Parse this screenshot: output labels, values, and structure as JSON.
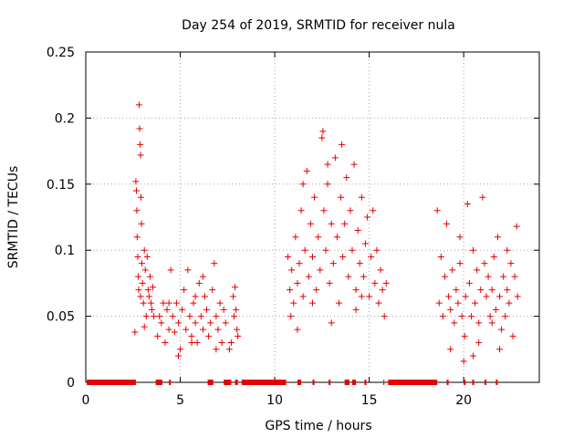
{
  "chart_data": {
    "type": "scatter",
    "title": "Day 254 of 2019, SRMTID for receiver nula",
    "xlabel": "GPS time / hours",
    "ylabel": "SRMTID / TECUs",
    "xlim": [
      0,
      24
    ],
    "ylim": [
      0,
      0.25
    ],
    "xticks": [
      0,
      5,
      10,
      15,
      20
    ],
    "yticks": [
      0,
      0.05,
      0.1,
      0.15,
      0.2,
      0.25
    ],
    "ytick_labels": [
      "0",
      "0.05",
      "0.1",
      "0.15",
      "0.2",
      "0.25"
    ],
    "grid": true,
    "marker": "+",
    "series": [
      {
        "name": "SRMTID",
        "color": "#e60000",
        "points": [
          [
            2.6,
            0.038
          ],
          [
            2.65,
            0.152
          ],
          [
            2.68,
            0.145
          ],
          [
            2.7,
            0.13
          ],
          [
            2.72,
            0.11
          ],
          [
            2.75,
            0.095
          ],
          [
            2.78,
            0.08
          ],
          [
            2.8,
            0.07
          ],
          [
            2.82,
            0.21
          ],
          [
            2.85,
            0.192
          ],
          [
            2.88,
            0.18
          ],
          [
            2.9,
            0.172
          ],
          [
            2.92,
            0.14
          ],
          [
            2.95,
            0.12
          ],
          [
            2.97,
            0.09
          ],
          [
            3.0,
            0.075
          ],
          [
            3.05,
            0.06
          ],
          [
            3.1,
            0.1
          ],
          [
            3.15,
            0.085
          ],
          [
            3.2,
            0.05
          ],
          [
            3.25,
            0.095
          ],
          [
            3.3,
            0.07
          ],
          [
            3.35,
            0.065
          ],
          [
            3.4,
            0.08
          ],
          [
            3.45,
            0.06
          ],
          [
            3.5,
            0.055
          ],
          [
            3.55,
            0.072
          ],
          [
            3.6,
            0.05
          ],
          [
            3.1,
            0.042
          ],
          [
            2.9,
            0.065
          ],
          [
            3.8,
            0.035
          ],
          [
            3.9,
            0.05
          ],
          [
            4.0,
            0.045
          ],
          [
            4.1,
            0.06
          ],
          [
            4.2,
            0.03
          ],
          [
            4.3,
            0.055
          ],
          [
            4.4,
            0.04
          ],
          [
            4.5,
            0.085
          ],
          [
            4.6,
            0.05
          ],
          [
            4.7,
            0.038
          ],
          [
            4.8,
            0.06
          ],
          [
            4.9,
            0.045
          ],
          [
            5.0,
            0.025
          ],
          [
            5.1,
            0.055
          ],
          [
            5.2,
            0.07
          ],
          [
            5.3,
            0.04
          ],
          [
            5.4,
            0.085
          ],
          [
            5.5,
            0.05
          ],
          [
            5.6,
            0.035
          ],
          [
            5.7,
            0.06
          ],
          [
            5.8,
            0.045
          ],
          [
            5.9,
            0.03
          ],
          [
            6.0,
            0.075
          ],
          [
            6.1,
            0.05
          ],
          [
            6.2,
            0.04
          ],
          [
            6.3,
            0.065
          ],
          [
            6.4,
            0.055
          ],
          [
            6.5,
            0.035
          ],
          [
            6.6,
            0.045
          ],
          [
            6.7,
            0.07
          ],
          [
            6.8,
            0.09
          ],
          [
            6.9,
            0.05
          ],
          [
            7.0,
            0.04
          ],
          [
            7.1,
            0.06
          ],
          [
            7.2,
            0.03
          ],
          [
            7.3,
            0.055
          ],
          [
            7.4,
            0.045
          ],
          [
            4.4,
            0.06
          ],
          [
            5.6,
            0.03
          ],
          [
            6.2,
            0.08
          ],
          [
            4.9,
            0.02
          ],
          [
            5.8,
            0.065
          ],
          [
            6.9,
            0.025
          ],
          [
            7.6,
            0.025
          ],
          [
            7.7,
            0.03
          ],
          [
            7.8,
            0.065
          ],
          [
            7.85,
            0.05
          ],
          [
            7.9,
            0.072
          ],
          [
            8.0,
            0.04
          ],
          [
            8.05,
            0.035
          ],
          [
            7.95,
            0.055
          ],
          [
            10.7,
            0.095
          ],
          [
            10.8,
            0.07
          ],
          [
            10.85,
            0.05
          ],
          [
            10.9,
            0.085
          ],
          [
            11.0,
            0.06
          ],
          [
            11.1,
            0.11
          ],
          [
            11.2,
            0.075
          ],
          [
            11.3,
            0.09
          ],
          [
            11.4,
            0.13
          ],
          [
            11.5,
            0.065
          ],
          [
            11.6,
            0.1
          ],
          [
            11.7,
            0.16
          ],
          [
            11.8,
            0.08
          ],
          [
            11.9,
            0.12
          ],
          [
            12.0,
            0.095
          ],
          [
            12.1,
            0.14
          ],
          [
            12.2,
            0.07
          ],
          [
            12.3,
            0.11
          ],
          [
            12.4,
            0.085
          ],
          [
            12.5,
            0.185
          ],
          [
            12.55,
            0.19
          ],
          [
            12.6,
            0.13
          ],
          [
            12.7,
            0.1
          ],
          [
            12.8,
            0.15
          ],
          [
            12.9,
            0.075
          ],
          [
            13.0,
            0.12
          ],
          [
            13.1,
            0.09
          ],
          [
            13.2,
            0.17
          ],
          [
            13.3,
            0.11
          ],
          [
            13.4,
            0.06
          ],
          [
            13.5,
            0.14
          ],
          [
            13.55,
            0.18
          ],
          [
            13.6,
            0.095
          ],
          [
            13.7,
            0.12
          ],
          [
            13.8,
            0.155
          ],
          [
            13.9,
            0.08
          ],
          [
            14.0,
            0.13
          ],
          [
            14.1,
            0.1
          ],
          [
            14.2,
            0.165
          ],
          [
            14.3,
            0.07
          ],
          [
            14.4,
            0.115
          ],
          [
            14.5,
            0.09
          ],
          [
            14.6,
            0.14
          ],
          [
            14.7,
            0.08
          ],
          [
            14.8,
            0.105
          ],
          [
            14.9,
            0.125
          ],
          [
            15.0,
            0.065
          ],
          [
            15.1,
            0.095
          ],
          [
            15.2,
            0.13
          ],
          [
            15.3,
            0.075
          ],
          [
            15.4,
            0.1
          ],
          [
            15.5,
            0.06
          ],
          [
            15.6,
            0.085
          ],
          [
            15.7,
            0.07
          ],
          [
            15.8,
            0.05
          ],
          [
            15.9,
            0.075
          ],
          [
            11.2,
            0.04
          ],
          [
            12.0,
            0.06
          ],
          [
            13.0,
            0.045
          ],
          [
            14.3,
            0.055
          ],
          [
            11.5,
            0.15
          ],
          [
            12.8,
            0.165
          ],
          [
            14.6,
            0.065
          ],
          [
            18.6,
            0.13
          ],
          [
            18.7,
            0.06
          ],
          [
            18.8,
            0.095
          ],
          [
            18.9,
            0.05
          ],
          [
            19.0,
            0.08
          ],
          [
            19.1,
            0.12
          ],
          [
            19.2,
            0.065
          ],
          [
            19.3,
            0.055
          ],
          [
            19.4,
            0.085
          ],
          [
            19.5,
            0.045
          ],
          [
            19.6,
            0.07
          ],
          [
            19.7,
            0.06
          ],
          [
            19.8,
            0.09
          ],
          [
            19.9,
            0.05
          ],
          [
            20.0,
            0.016
          ],
          [
            20.05,
            0.035
          ],
          [
            20.1,
            0.065
          ],
          [
            20.2,
            0.135
          ],
          [
            20.3,
            0.075
          ],
          [
            20.4,
            0.05
          ],
          [
            20.5,
            0.1
          ],
          [
            20.6,
            0.06
          ],
          [
            20.7,
            0.085
          ],
          [
            20.8,
            0.045
          ],
          [
            20.9,
            0.07
          ],
          [
            21.0,
            0.14
          ],
          [
            21.1,
            0.09
          ],
          [
            21.2,
            0.065
          ],
          [
            21.3,
            0.08
          ],
          [
            21.4,
            0.05
          ],
          [
            21.5,
            0.07
          ],
          [
            21.6,
            0.095
          ],
          [
            21.7,
            0.055
          ],
          [
            21.8,
            0.11
          ],
          [
            21.9,
            0.065
          ],
          [
            22.0,
            0.04
          ],
          [
            22.1,
            0.08
          ],
          [
            22.2,
            0.05
          ],
          [
            22.3,
            0.07
          ],
          [
            22.4,
            0.06
          ],
          [
            22.5,
            0.09
          ],
          [
            22.6,
            0.035
          ],
          [
            22.7,
            0.08
          ],
          [
            22.8,
            0.118
          ],
          [
            22.85,
            0.065
          ],
          [
            19.3,
            0.025
          ],
          [
            20.8,
            0.03
          ],
          [
            21.9,
            0.025
          ],
          [
            22.3,
            0.1
          ],
          [
            19.8,
            0.11
          ],
          [
            21.5,
            0.045
          ],
          [
            20.5,
            0.02
          ]
        ]
      }
    ],
    "baseline_segments": [
      [
        0.05,
        2.65
      ],
      [
        3.7,
        4.05
      ],
      [
        4.4,
        4.5
      ],
      [
        6.45,
        6.75
      ],
      [
        7.3,
        7.7
      ],
      [
        7.9,
        8.05
      ],
      [
        8.25,
        10.6
      ],
      [
        11.2,
        11.4
      ],
      [
        12.0,
        12.1
      ],
      [
        12.85,
        12.95
      ],
      [
        13.7,
        13.95
      ],
      [
        14.1,
        14.2
      ],
      [
        14.15,
        14.3
      ],
      [
        14.75,
        14.85
      ],
      [
        15.75,
        15.8
      ],
      [
        16.0,
        18.6
      ],
      [
        19.1,
        19.2
      ],
      [
        20.0,
        20.1
      ],
      [
        20.45,
        20.55
      ],
      [
        21.1,
        21.2
      ],
      [
        21.7,
        21.8
      ]
    ]
  }
}
